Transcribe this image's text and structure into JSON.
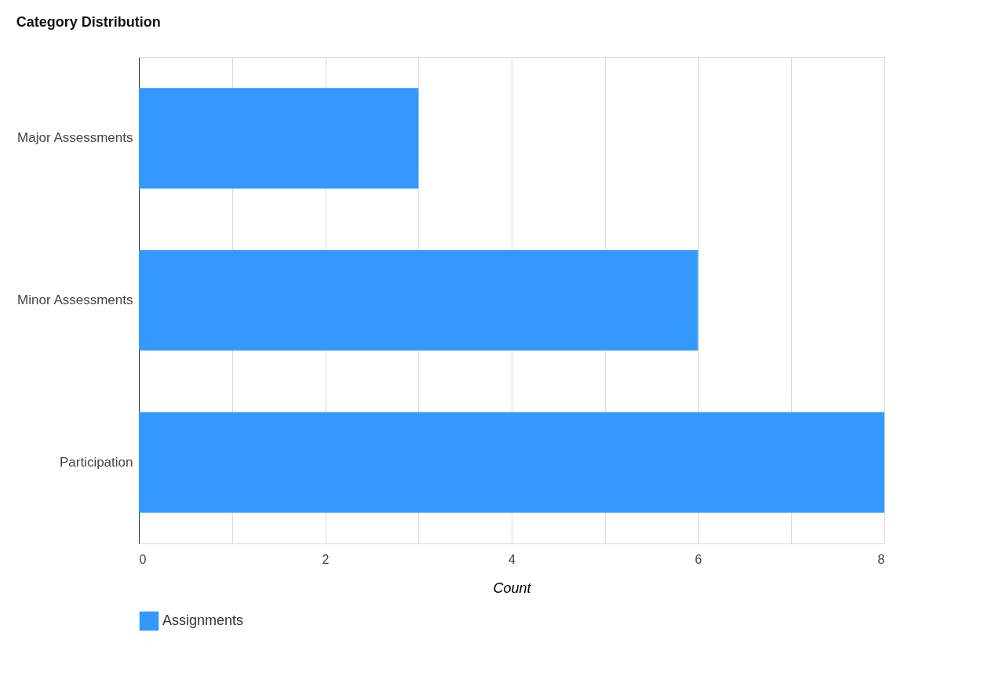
{
  "chart_data": {
    "type": "bar",
    "orientation": "horizontal",
    "title": "Category Distribution",
    "xlabel": "Count",
    "categories": [
      "Major Assessments",
      "Minor Assessments",
      "Participation"
    ],
    "series": [
      {
        "name": "Assignments",
        "color": "#3399ff",
        "values": [
          3,
          6,
          8
        ]
      }
    ],
    "xlim": [
      0,
      8
    ],
    "xticks": [
      0,
      {
        "value": 1,
        "label": null
      },
      2,
      {
        "value": 3,
        "label": null
      },
      4,
      {
        "value": 5,
        "label": null
      },
      6,
      {
        "value": 7,
        "label": null
      },
      8
    ],
    "grid": "x",
    "legend": "bottom"
  }
}
